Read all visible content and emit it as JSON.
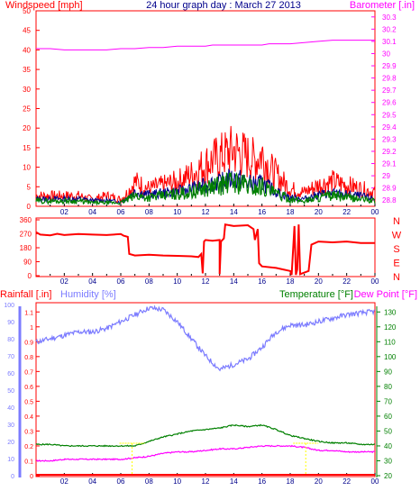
{
  "header": {
    "left_label": "Windspeed [mph]",
    "title": "24 hour graph day : March 27 2013",
    "right_label": "Barometer [.in]"
  },
  "colors": {
    "wind": "#ff0000",
    "gust_avg": "#00008b",
    "wind_avg": "#008000",
    "barometer": "#ff00ff",
    "direction": "#ff0000",
    "rain": "#ff0000",
    "humidity": "#7b7bff",
    "temperature": "#008000",
    "dewpoint": "#ff00ff",
    "frame": "#ff0000",
    "hour_labels": "#00008b",
    "yellow_marker": "#ffff00"
  },
  "chart_data": [
    {
      "type": "line",
      "name": "windspeed-barometer",
      "x_ticks": [
        "02",
        "04",
        "06",
        "08",
        "10",
        "12",
        "14",
        "16",
        "18",
        "20",
        "22",
        "00"
      ],
      "y_ticks_left": [
        "0",
        "5",
        "10",
        "15",
        "20",
        "25",
        "30",
        "35",
        "40",
        "45",
        "50"
      ],
      "y_ticks_right": [
        "28.8",
        "28.9",
        "29",
        "29.1",
        "29.2",
        "29.3",
        "29.4",
        "29.5",
        "29.6",
        "29.7",
        "29.8",
        "29.9",
        "30",
        "30.1",
        "30.2",
        "30.3"
      ],
      "ylim_left": [
        0,
        50
      ],
      "ylim_right": [
        28.75,
        30.35
      ],
      "hours": [
        0,
        1,
        2,
        3,
        4,
        5,
        6,
        6.5,
        7,
        8,
        9,
        10,
        11,
        12,
        12.5,
        13,
        13.5,
        14,
        14.5,
        15,
        15.5,
        16,
        16.5,
        17,
        18,
        19,
        20,
        21,
        22,
        23,
        24
      ],
      "wind_max": [
        3,
        3,
        3,
        3,
        2,
        3,
        2,
        4,
        7,
        5,
        6,
        7,
        9,
        12,
        13,
        14,
        15,
        16,
        15,
        14,
        13,
        15,
        11,
        9,
        5,
        4,
        6,
        7,
        6,
        5,
        4
      ],
      "wind_avg": [
        1.5,
        1.5,
        1.5,
        1.5,
        1,
        1,
        1,
        2,
        3,
        2.5,
        3,
        3.5,
        4,
        5,
        5.5,
        6,
        6.5,
        7,
        6.5,
        6,
        5,
        6,
        4.5,
        3.5,
        2,
        1.5,
        2.5,
        3,
        2.5,
        2,
        1.5
      ],
      "gust_avg": [
        2.5,
        2.5,
        2.5,
        2.5,
        2,
        2,
        1.5,
        3,
        5,
        4,
        4.5,
        5,
        6,
        7,
        8,
        8,
        9,
        9.5,
        9,
        8,
        7.5,
        8,
        6.5,
        5,
        3,
        2.5,
        4,
        4.5,
        4,
        3.5,
        2.5
      ],
      "barometer": [
        30.04,
        30.04,
        30.03,
        30.03,
        30.03,
        30.03,
        30.04,
        30.04,
        30.04,
        30.05,
        30.05,
        30.06,
        30.06,
        30.06,
        30.07,
        30.07,
        30.07,
        30.07,
        30.07,
        30.07,
        30.07,
        30.07,
        30.08,
        30.08,
        30.08,
        30.09,
        30.1,
        30.11,
        30.11,
        30.11,
        30.11
      ]
    },
    {
      "type": "line",
      "name": "wind-direction",
      "y_ticks": [
        "0",
        "90",
        "180",
        "270",
        "360"
      ],
      "compass_labels": [
        "N",
        "W",
        "S",
        "E",
        "N"
      ],
      "ylim": [
        0,
        360
      ],
      "points": [
        [
          0,
          280
        ],
        [
          0.3,
          265
        ],
        [
          1,
          260
        ],
        [
          1.5,
          270
        ],
        [
          2,
          262
        ],
        [
          3,
          268
        ],
        [
          4,
          265
        ],
        [
          5,
          262
        ],
        [
          6,
          268
        ],
        [
          6.2,
          258
        ],
        [
          6.5,
          250
        ],
        [
          6.6,
          140
        ],
        [
          7,
          130
        ],
        [
          8,
          135
        ],
        [
          9,
          130
        ],
        [
          10,
          128
        ],
        [
          11,
          125
        ],
        [
          11.5,
          120
        ],
        [
          11.7,
          140
        ],
        [
          11.8,
          15
        ],
        [
          11.9,
          220
        ],
        [
          12,
          230
        ],
        [
          12.5,
          225
        ],
        [
          13,
          230
        ],
        [
          13,
          10
        ],
        [
          13.1,
          220
        ],
        [
          13.3,
          240
        ],
        [
          13.4,
          330
        ],
        [
          14,
          320
        ],
        [
          15,
          325
        ],
        [
          15.4,
          300
        ],
        [
          15.5,
          230
        ],
        [
          15.7,
          300
        ],
        [
          15.8,
          80
        ],
        [
          16,
          60
        ],
        [
          17,
          50
        ],
        [
          17.5,
          40
        ],
        [
          18,
          30
        ],
        [
          18.1,
          5
        ],
        [
          18.3,
          320
        ],
        [
          18.4,
          5
        ],
        [
          18.5,
          40
        ],
        [
          18.6,
          330
        ],
        [
          18.7,
          10
        ],
        [
          19,
          20
        ],
        [
          19.3,
          30
        ],
        [
          19.5,
          200
        ],
        [
          20,
          220
        ],
        [
          21,
          215
        ],
        [
          22,
          220
        ],
        [
          23,
          210
        ],
        [
          24,
          210
        ]
      ]
    },
    {
      "type": "line",
      "name": "rain-humidity-temperature",
      "left_label": "Rainfall [.in]",
      "humidity_label": "Humidity [%]",
      "temp_label": "Temperature [°F]",
      "dew_label": "Dew Point [°F]",
      "rain_ticks": [
        "0",
        "0.1",
        "0.2",
        "0.3",
        "0.4",
        "0.5",
        "0.6",
        "0.7",
        "0.8",
        "0.9",
        "1",
        "1.1"
      ],
      "humidity_ticks": [
        "0",
        "10",
        "20",
        "30",
        "40",
        "50",
        "60",
        "70",
        "80",
        "90",
        "100"
      ],
      "temp_ticks": [
        "20",
        "30",
        "40",
        "50",
        "60",
        "70",
        "80",
        "90",
        "100",
        "110",
        "120",
        "130"
      ],
      "ylim_rain": [
        0,
        1.15
      ],
      "ylim_humidity": [
        0,
        100
      ],
      "ylim_temp": [
        20,
        135
      ],
      "hours": [
        0,
        1,
        2,
        3,
        4,
        5,
        6,
        7,
        8,
        9,
        10,
        11,
        12,
        13,
        14,
        15,
        16,
        17,
        18,
        19,
        20,
        21,
        22,
        23,
        24
      ],
      "humidity": [
        78,
        80,
        82,
        84,
        84,
        86,
        90,
        94,
        98,
        97,
        90,
        80,
        70,
        62,
        65,
        68,
        75,
        84,
        88,
        88,
        90,
        92,
        94,
        95,
        96
      ],
      "temperature": [
        41,
        41,
        40,
        40,
        40,
        40,
        40,
        40,
        43,
        46,
        48,
        50,
        51,
        52,
        54,
        53,
        54,
        51,
        47,
        45,
        43,
        42,
        42,
        41,
        41
      ],
      "dewpoint": [
        30,
        30,
        31,
        31,
        31,
        31,
        31,
        32,
        33,
        35,
        36,
        36,
        37,
        38,
        38,
        39,
        40,
        40,
        40,
        39,
        37,
        37,
        36,
        36,
        36
      ],
      "rain_total": [
        0,
        0,
        0,
        0,
        0,
        0,
        0,
        0,
        0,
        0,
        0,
        0,
        0,
        0,
        0,
        0,
        0,
        0,
        0,
        0,
        0,
        0,
        0,
        0,
        0
      ]
    }
  ]
}
